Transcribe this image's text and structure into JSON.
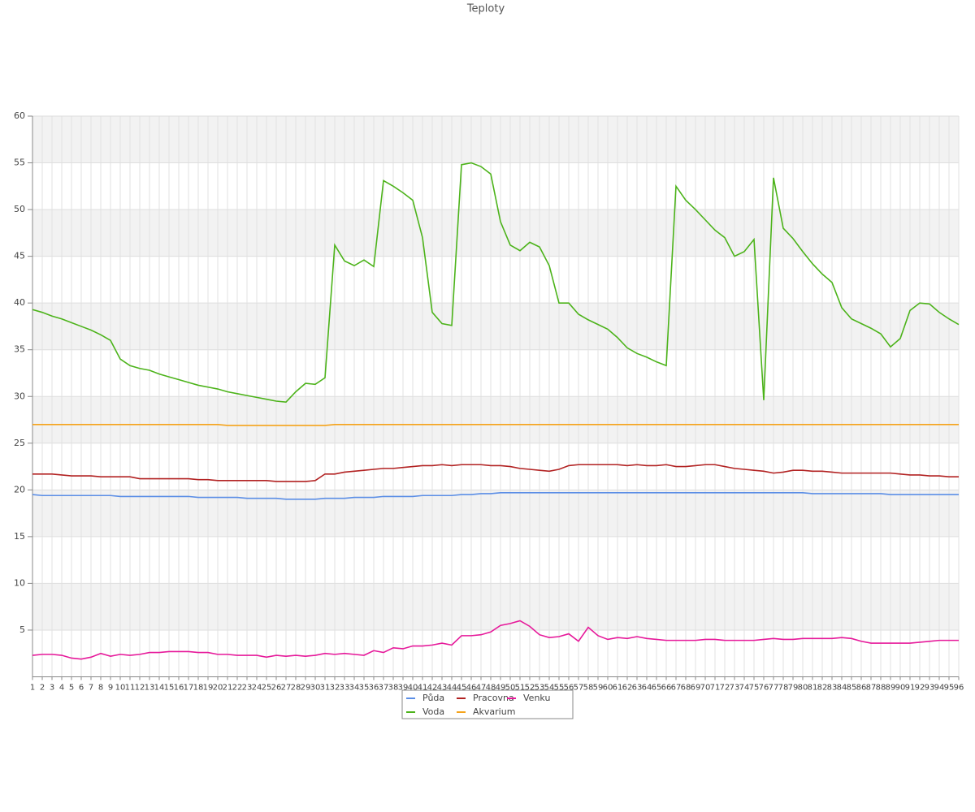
{
  "chart_data": {
    "type": "line",
    "title": "Teploty",
    "categories": [
      "1",
      "2",
      "3",
      "4",
      "5",
      "6",
      "7",
      "8",
      "9",
      "10",
      "11",
      "12",
      "13",
      "14",
      "15",
      "16",
      "17",
      "18",
      "19",
      "20",
      "21",
      "22",
      "23",
      "24",
      "25",
      "26",
      "27",
      "28",
      "29",
      "30",
      "31",
      "32",
      "33",
      "34",
      "35",
      "36",
      "37",
      "38",
      "39",
      "40",
      "41",
      "42",
      "43",
      "44",
      "45",
      "46",
      "47",
      "48",
      "49",
      "50",
      "51",
      "52",
      "53",
      "54",
      "55",
      "56",
      "57",
      "58",
      "59",
      "60",
      "61",
      "62",
      "63",
      "64",
      "65",
      "66",
      "67",
      "68",
      "69",
      "70",
      "71",
      "72",
      "73",
      "74",
      "75",
      "76",
      "77",
      "78",
      "79",
      "80",
      "81",
      "82",
      "83",
      "84",
      "85",
      "86",
      "87",
      "88",
      "89",
      "90",
      "91",
      "92",
      "93",
      "94",
      "95",
      "96"
    ],
    "ylim": [
      0,
      60
    ],
    "yticks": [
      5,
      10,
      15,
      20,
      25,
      30,
      35,
      40,
      45,
      50,
      55,
      60
    ],
    "grid": true,
    "series": [
      {
        "name": "Půda",
        "color": "#5b8ee6",
        "values": [
          19.5,
          19.4,
          19.4,
          19.4,
          19.4,
          19.4,
          19.4,
          19.4,
          19.4,
          19.3,
          19.3,
          19.3,
          19.3,
          19.3,
          19.3,
          19.3,
          19.3,
          19.2,
          19.2,
          19.2,
          19.2,
          19.2,
          19.1,
          19.1,
          19.1,
          19.1,
          19.0,
          19.0,
          19.0,
          19.0,
          19.1,
          19.1,
          19.1,
          19.2,
          19.2,
          19.2,
          19.3,
          19.3,
          19.3,
          19.3,
          19.4,
          19.4,
          19.4,
          19.4,
          19.5,
          19.5,
          19.6,
          19.6,
          19.7,
          19.7,
          19.7,
          19.7,
          19.7,
          19.7,
          19.7,
          19.7,
          19.7,
          19.7,
          19.7,
          19.7,
          19.7,
          19.7,
          19.7,
          19.7,
          19.7,
          19.7,
          19.7,
          19.7,
          19.7,
          19.7,
          19.7,
          19.7,
          19.7,
          19.7,
          19.7,
          19.7,
          19.7,
          19.7,
          19.7,
          19.7,
          19.6,
          19.6,
          19.6,
          19.6,
          19.6,
          19.6,
          19.6,
          19.6,
          19.5,
          19.5,
          19.5,
          19.5,
          19.5,
          19.5,
          19.5,
          19.5
        ]
      },
      {
        "name": "Voda",
        "color": "#4cb31a",
        "values": [
          39.3,
          39.0,
          38.6,
          38.3,
          37.9,
          37.5,
          37.1,
          36.6,
          36.0,
          34.0,
          33.3,
          33.0,
          32.8,
          32.4,
          32.1,
          31.8,
          31.5,
          31.2,
          31.0,
          30.8,
          30.5,
          30.3,
          30.1,
          29.9,
          29.7,
          29.5,
          29.4,
          30.5,
          31.4,
          31.3,
          32.0,
          46.2,
          44.5,
          44.0,
          44.6,
          43.9,
          53.1,
          52.5,
          51.8,
          51.0,
          47.0,
          39.0,
          37.8,
          37.6,
          54.8,
          55.0,
          54.6,
          53.8,
          48.7,
          46.2,
          45.6,
          46.5,
          46.0,
          44.0,
          40.0,
          40.0,
          38.8,
          38.2,
          37.7,
          37.2,
          36.3,
          35.2,
          34.6,
          34.2,
          33.7,
          33.3,
          52.5,
          51.0,
          50.0,
          48.9,
          47.8,
          47.0,
          45.0,
          45.5,
          46.8,
          29.6,
          53.4,
          48.0,
          46.9,
          45.5,
          44.2,
          43.1,
          42.2,
          39.5,
          38.3,
          37.8,
          37.3,
          36.7,
          35.3,
          36.2,
          39.2,
          40.0,
          39.9,
          39.0,
          38.3,
          37.7
        ]
      },
      {
        "name": "Pracovna",
        "color": "#b22222",
        "values": [
          21.7,
          21.7,
          21.7,
          21.6,
          21.5,
          21.5,
          21.5,
          21.4,
          21.4,
          21.4,
          21.4,
          21.2,
          21.2,
          21.2,
          21.2,
          21.2,
          21.2,
          21.1,
          21.1,
          21.0,
          21.0,
          21.0,
          21.0,
          21.0,
          21.0,
          20.9,
          20.9,
          20.9,
          20.9,
          21.0,
          21.7,
          21.7,
          21.9,
          22.0,
          22.1,
          22.2,
          22.3,
          22.3,
          22.4,
          22.5,
          22.6,
          22.6,
          22.7,
          22.6,
          22.7,
          22.7,
          22.7,
          22.6,
          22.6,
          22.5,
          22.3,
          22.2,
          22.1,
          22.0,
          22.2,
          22.6,
          22.7,
          22.7,
          22.7,
          22.7,
          22.7,
          22.6,
          22.7,
          22.6,
          22.6,
          22.7,
          22.5,
          22.5,
          22.6,
          22.7,
          22.7,
          22.5,
          22.3,
          22.2,
          22.1,
          22.0,
          21.8,
          21.9,
          22.1,
          22.1,
          22.0,
          22.0,
          21.9,
          21.8,
          21.8,
          21.8,
          21.8,
          21.8,
          21.8,
          21.7,
          21.6,
          21.6,
          21.5,
          21.5,
          21.4,
          21.4
        ]
      },
      {
        "name": "Akvarium",
        "color": "#f5a31a",
        "values": [
          27.0,
          27.0,
          27.0,
          27.0,
          27.0,
          27.0,
          27.0,
          27.0,
          27.0,
          27.0,
          27.0,
          27.0,
          27.0,
          27.0,
          27.0,
          27.0,
          27.0,
          27.0,
          27.0,
          27.0,
          26.9,
          26.9,
          26.9,
          26.9,
          26.9,
          26.9,
          26.9,
          26.9,
          26.9,
          26.9,
          26.9,
          27.0,
          27.0,
          27.0,
          27.0,
          27.0,
          27.0,
          27.0,
          27.0,
          27.0,
          27.0,
          27.0,
          27.0,
          27.0,
          27.0,
          27.0,
          27.0,
          27.0,
          27.0,
          27.0,
          27.0,
          27.0,
          27.0,
          27.0,
          27.0,
          27.0,
          27.0,
          27.0,
          27.0,
          27.0,
          27.0,
          27.0,
          27.0,
          27.0,
          27.0,
          27.0,
          27.0,
          27.0,
          27.0,
          27.0,
          27.0,
          27.0,
          27.0,
          27.0,
          27.0,
          27.0,
          27.0,
          27.0,
          27.0,
          27.0,
          27.0,
          27.0,
          27.0,
          27.0,
          27.0,
          27.0,
          27.0,
          27.0,
          27.0,
          27.0,
          27.0,
          27.0,
          27.0,
          27.0,
          27.0,
          27.0
        ]
      },
      {
        "name": "Venku",
        "color": "#e6199a",
        "values": [
          2.3,
          2.4,
          2.4,
          2.3,
          2.0,
          1.9,
          2.1,
          2.5,
          2.2,
          2.4,
          2.3,
          2.4,
          2.6,
          2.6,
          2.7,
          2.7,
          2.7,
          2.6,
          2.6,
          2.4,
          2.4,
          2.3,
          2.3,
          2.3,
          2.1,
          2.3,
          2.2,
          2.3,
          2.2,
          2.3,
          2.5,
          2.4,
          2.5,
          2.4,
          2.3,
          2.8,
          2.6,
          3.1,
          3.0,
          3.3,
          3.3,
          3.4,
          3.6,
          3.4,
          4.4,
          4.4,
          4.5,
          4.8,
          5.5,
          5.7,
          6.0,
          5.4,
          4.5,
          4.2,
          4.3,
          4.6,
          3.8,
          5.3,
          4.4,
          4.0,
          4.2,
          4.1,
          4.3,
          4.1,
          4.0,
          3.9,
          3.9,
          3.9,
          3.9,
          4.0,
          4.0,
          3.9,
          3.9,
          3.9,
          3.9,
          4.0,
          4.1,
          4.0,
          4.0,
          4.1,
          4.1,
          4.1,
          4.1,
          4.2,
          4.1,
          3.8,
          3.6,
          3.6,
          3.6,
          3.6,
          3.6,
          3.7,
          3.8,
          3.9,
          3.9,
          3.9
        ]
      }
    ]
  }
}
